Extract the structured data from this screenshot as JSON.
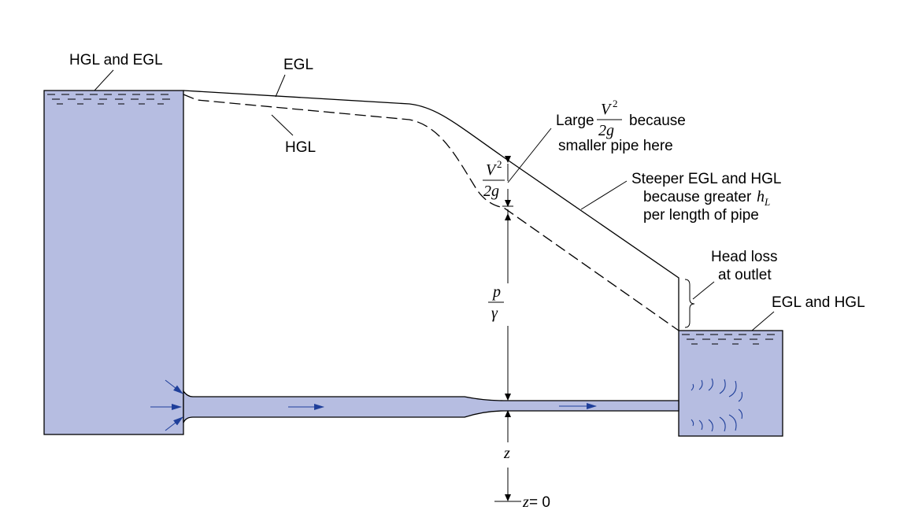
{
  "colors": {
    "water": "#b6bde1",
    "arrow": "#1f3f9a",
    "line": "#000000"
  },
  "labels": {
    "hgl_and_egl": "HGL and EGL",
    "egl": "EGL",
    "hgl": "HGL",
    "large": "Large",
    "because": "because",
    "smaller_pipe_here": "smaller pipe here",
    "steeper_line1": "Steeper EGL and HGL",
    "steeper_line2": "because greater",
    "steeper_hl_h": "h",
    "steeper_hl_sub": "L",
    "steeper_line3": "per length of pipe",
    "head_loss_line1": "Head loss",
    "head_loss_line2": "at outlet",
    "egl_and_hgl": "EGL and HGL"
  },
  "math": {
    "v_squared_num": "V",
    "v_squared_exp": "2",
    "two_g": "2g",
    "p": "p",
    "gamma": "γ",
    "z": "z",
    "z_eq_var": "z",
    "z_eq_rest": " = 0"
  }
}
